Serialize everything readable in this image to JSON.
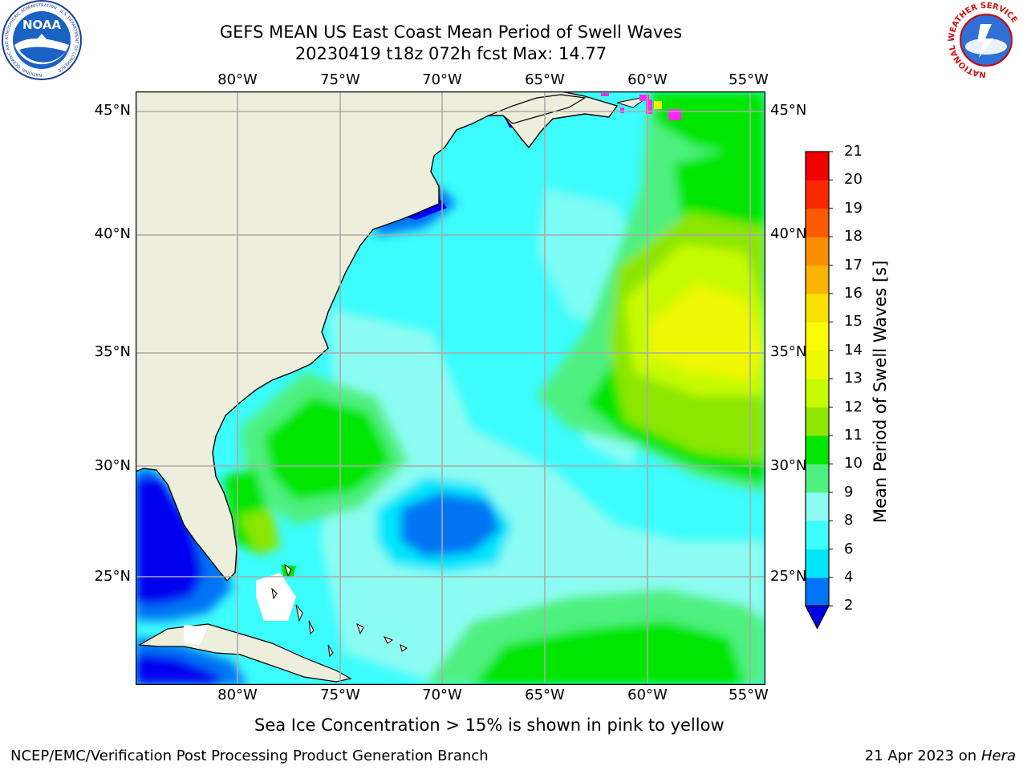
{
  "title_line1": "GEFS MEAN US East Coast Mean Period of Swell Waves",
  "title_line2": "20230419 t18z 072h fcst   Max: 14.77",
  "lon_labels": [
    "80°W",
    "75°W",
    "70°W",
    "65°W",
    "60°W",
    "55°W"
  ],
  "lat_labels": [
    "45°N",
    "40°N",
    "35°N",
    "30°N",
    "25°N"
  ],
  "colorbar": {
    "title": "Mean Period of Swell Waves [s]",
    "ticks": [
      "2",
      "4",
      "6",
      "8",
      "9",
      "10",
      "11",
      "12",
      "13",
      "14",
      "15",
      "16",
      "17",
      "18",
      "19",
      "20",
      "21"
    ],
    "colors": [
      "#0000f0",
      "#0074f4",
      "#00e6fa",
      "#3cfcfc",
      "#8cfcf2",
      "#50f080",
      "#00e600",
      "#8ce600",
      "#c6fa00",
      "#eef800",
      "#fafa00",
      "#fae000",
      "#fab400",
      "#fa8c00",
      "#fa5a00",
      "#fa2800",
      "#f00000"
    ],
    "extend_color": "#0000e6"
  },
  "map_colors": {
    "land": "#eeeedc",
    "grid": "#aaaaaa",
    "coast": "#000000",
    "ice": "#ff2cf0"
  },
  "subtitle": "Sea Ice Concentration > 15% is shown in pink to yellow",
  "footer_left": "NCEP/EMC/Verification Post Processing Product Generation Branch",
  "footer_right_date": "21 Apr 2023 on ",
  "footer_right_machine": "Hera",
  "logos": {
    "left_text": "NOAA",
    "left_ring": "NATIONAL OCEANIC AND ATMOSPHERIC ADMINISTRATION · U.S. DEPARTMENT OF COMMERCE",
    "right_ring": "NATIONAL WEATHER SERVICE"
  }
}
